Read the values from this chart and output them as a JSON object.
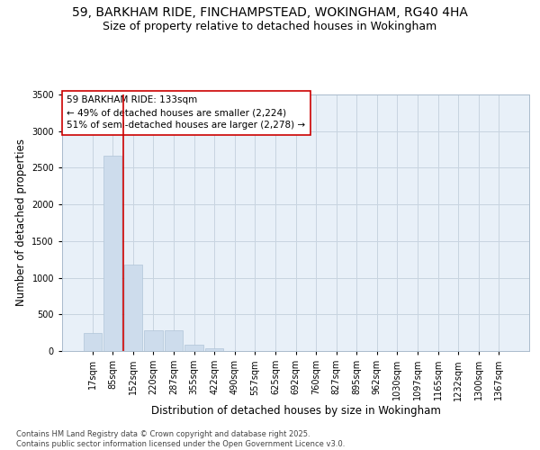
{
  "title_line1": "59, BARKHAM RIDE, FINCHAMPSTEAD, WOKINGHAM, RG40 4HA",
  "title_line2": "Size of property relative to detached houses in Wokingham",
  "xlabel": "Distribution of detached houses by size in Wokingham",
  "ylabel": "Number of detached properties",
  "categories": [
    "17sqm",
    "85sqm",
    "152sqm",
    "220sqm",
    "287sqm",
    "355sqm",
    "422sqm",
    "490sqm",
    "557sqm",
    "625sqm",
    "692sqm",
    "760sqm",
    "827sqm",
    "895sqm",
    "962sqm",
    "1030sqm",
    "1097sqm",
    "1165sqm",
    "1232sqm",
    "1300sqm",
    "1367sqm"
  ],
  "values": [
    250,
    2670,
    1175,
    280,
    280,
    90,
    40,
    0,
    0,
    0,
    0,
    0,
    0,
    0,
    0,
    0,
    0,
    0,
    0,
    0,
    0
  ],
  "bar_color": "#cddcec",
  "bar_edge_color": "#b0c4d8",
  "annotation_text": "59 BARKHAM RIDE: 133sqm\n← 49% of detached houses are smaller (2,224)\n51% of semi-detached houses are larger (2,278) →",
  "annotation_box_color": "#ffffff",
  "annotation_box_edge": "#cc0000",
  "red_line_color": "#cc0000",
  "grid_color": "#c8d4e0",
  "background_color": "#e8f0f8",
  "fig_background": "#ffffff",
  "ylim": [
    0,
    3500
  ],
  "yticks": [
    0,
    500,
    1000,
    1500,
    2000,
    2500,
    3000,
    3500
  ],
  "footer_text": "Contains HM Land Registry data © Crown copyright and database right 2025.\nContains public sector information licensed under the Open Government Licence v3.0.",
  "title_fontsize": 10,
  "subtitle_fontsize": 9,
  "axis_label_fontsize": 8.5,
  "tick_fontsize": 7,
  "annotation_fontsize": 7.5,
  "footer_fontsize": 6
}
